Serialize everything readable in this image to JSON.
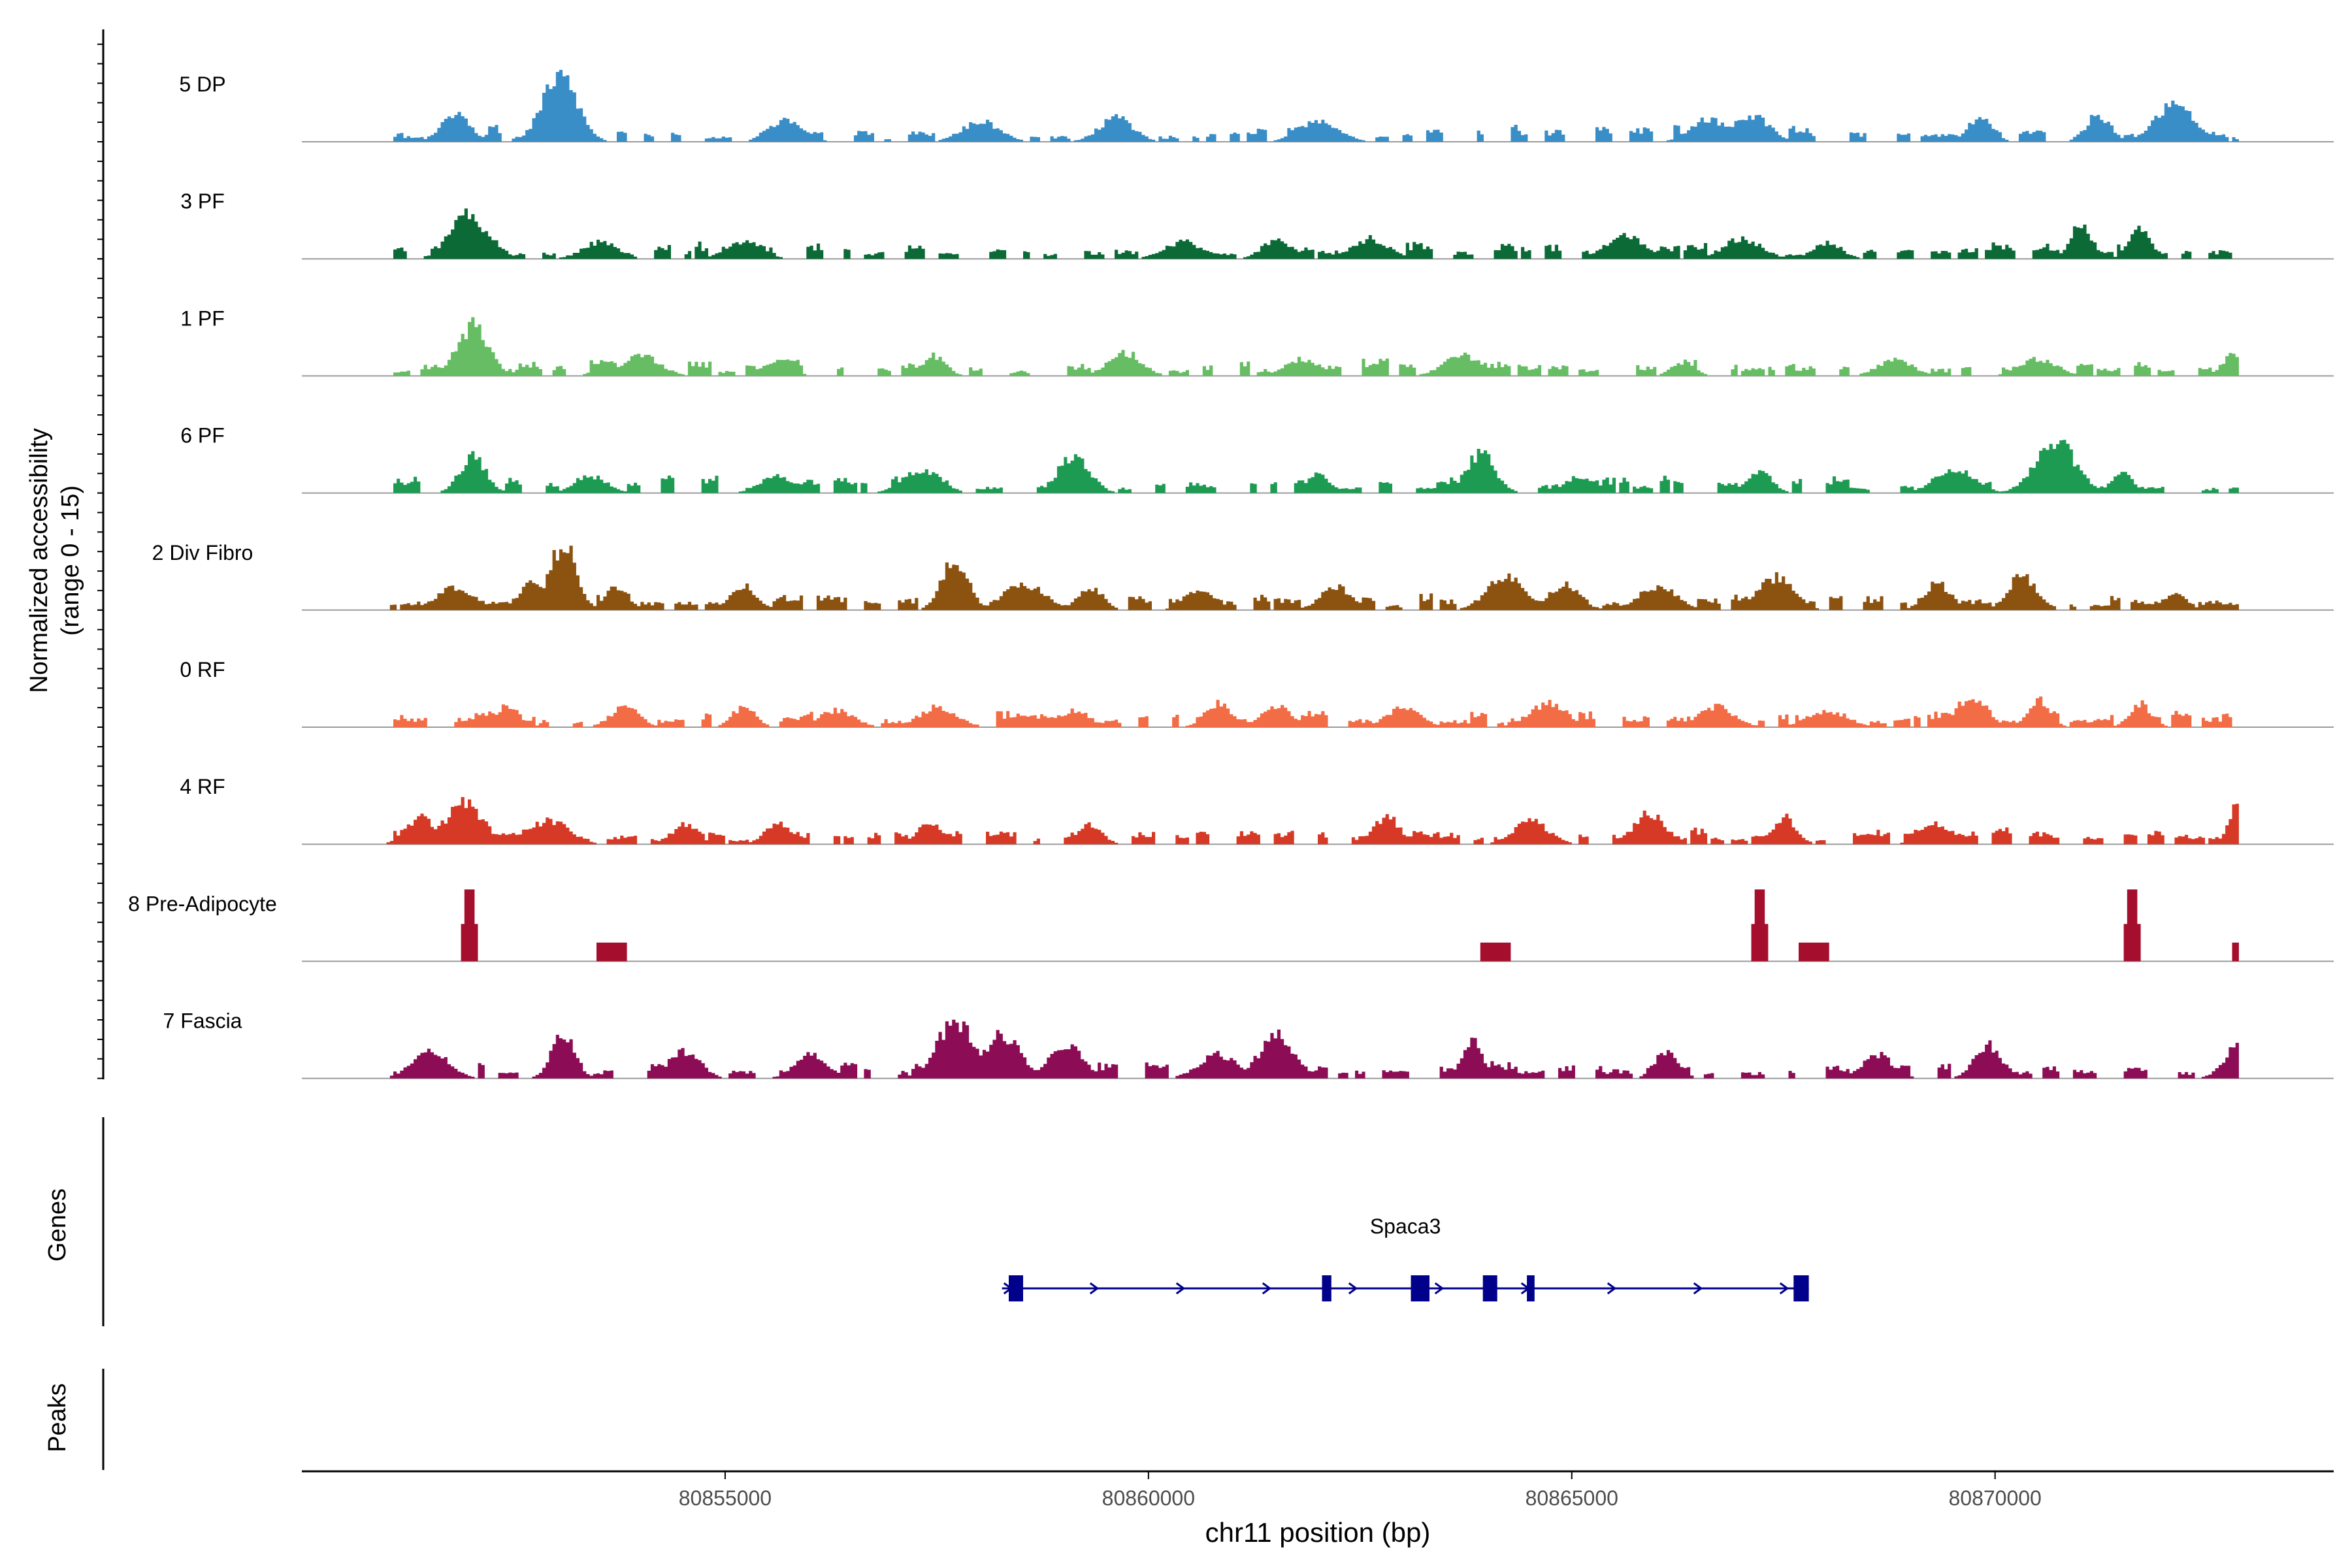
{
  "chart_data": {
    "type": "area",
    "title": "",
    "ylabel_line1": "Normalized accessibility",
    "ylabel_line2": "(range 0 - 15)",
    "xlabel": "chr11 position (bp)",
    "xlim": [
      80850000,
      80874000
    ],
    "xticks": [
      "80855000",
      "80860000",
      "80865000",
      "80870000"
    ],
    "xtick_values": [
      80855000,
      80860000,
      80865000,
      80870000
    ],
    "ylim": [
      0,
      15
    ],
    "series": [
      {
        "name": "5 DP",
        "color": "#3a8ec7",
        "density": 0.55,
        "seed": 11,
        "peaks": [
          [
            80851800,
            0.45
          ],
          [
            80853030,
            1.0
          ],
          [
            80855700,
            0.35
          ],
          [
            80858000,
            0.3
          ],
          [
            80859600,
            0.35
          ],
          [
            80862000,
            0.3
          ],
          [
            80866600,
            0.35
          ],
          [
            80867100,
            0.4
          ],
          [
            80869800,
            0.35
          ],
          [
            80871200,
            0.4
          ],
          [
            80872100,
            0.55
          ]
        ]
      },
      {
        "name": "3 PF",
        "color": "#0c6a37",
        "density": 0.55,
        "seed": 23,
        "peaks": [
          [
            80851950,
            0.65
          ],
          [
            80852200,
            0.3
          ],
          [
            80853500,
            0.25
          ],
          [
            80855200,
            0.25
          ],
          [
            80860400,
            0.25
          ],
          [
            80861500,
            0.3
          ],
          [
            80862600,
            0.3
          ],
          [
            80865600,
            0.35
          ],
          [
            80867000,
            0.3
          ],
          [
            80868000,
            0.25
          ],
          [
            80871000,
            0.55
          ],
          [
            80871700,
            0.45
          ]
        ]
      },
      {
        "name": "1 PF",
        "color": "#66bd63",
        "density": 0.45,
        "seed": 37,
        "peaks": [
          [
            80852000,
            0.75
          ],
          [
            80853600,
            0.25
          ],
          [
            80854000,
            0.3
          ],
          [
            80855600,
            0.25
          ],
          [
            80857450,
            0.3
          ],
          [
            80859700,
            0.35
          ],
          [
            80861800,
            0.25
          ],
          [
            80863700,
            0.3
          ],
          [
            80866300,
            0.2
          ],
          [
            80868800,
            0.25
          ],
          [
            80870500,
            0.25
          ],
          [
            80872800,
            0.35
          ]
        ]
      },
      {
        "name": "6 PF",
        "color": "#1e9b53",
        "density": 0.45,
        "seed": 41,
        "peaks": [
          [
            80852000,
            0.55
          ],
          [
            80853400,
            0.25
          ],
          [
            80855600,
            0.25
          ],
          [
            80857300,
            0.35
          ],
          [
            80859100,
            0.55
          ],
          [
            80862000,
            0.3
          ],
          [
            80863900,
            0.6
          ],
          [
            80865100,
            0.25
          ],
          [
            80867200,
            0.3
          ],
          [
            80869500,
            0.35
          ],
          [
            80870700,
            0.75
          ],
          [
            80871500,
            0.3
          ]
        ]
      },
      {
        "name": "2 Div Fibro",
        "color": "#8b5210",
        "density": 0.8,
        "seed": 53,
        "peaks": [
          [
            80851800,
            0.35
          ],
          [
            80852700,
            0.45
          ],
          [
            80853070,
            1.0
          ],
          [
            80853700,
            0.35
          ],
          [
            80855200,
            0.35
          ],
          [
            80857700,
            0.75
          ],
          [
            80858500,
            0.4
          ],
          [
            80859300,
            0.35
          ],
          [
            80860600,
            0.3
          ],
          [
            80862200,
            0.35
          ],
          [
            80864200,
            0.5
          ],
          [
            80864900,
            0.4
          ],
          [
            80866000,
            0.35
          ],
          [
            80867400,
            0.5
          ],
          [
            80869300,
            0.4
          ],
          [
            80870300,
            0.5
          ],
          [
            80872100,
            0.25
          ]
        ]
      },
      {
        "name": "0 RF",
        "color": "#f26c45",
        "density": 0.65,
        "seed": 67,
        "peaks": [
          [
            80852400,
            0.3
          ],
          [
            80853800,
            0.3
          ],
          [
            80855200,
            0.3
          ],
          [
            80856300,
            0.25
          ],
          [
            80857500,
            0.3
          ],
          [
            80859100,
            0.25
          ],
          [
            80860800,
            0.35
          ],
          [
            80861500,
            0.3
          ],
          [
            80863000,
            0.3
          ],
          [
            80864700,
            0.35
          ],
          [
            80866700,
            0.3
          ],
          [
            80868000,
            0.25
          ],
          [
            80869700,
            0.45
          ],
          [
            80870500,
            0.4
          ],
          [
            80871700,
            0.35
          ]
        ]
      },
      {
        "name": "4 RF",
        "color": "#d63a26",
        "density": 0.7,
        "seed": 79,
        "peaks": [
          [
            80851400,
            0.4
          ],
          [
            80851900,
            0.6
          ],
          [
            80852900,
            0.35
          ],
          [
            80854500,
            0.3
          ],
          [
            80855600,
            0.3
          ],
          [
            80857400,
            0.35
          ],
          [
            80859300,
            0.3
          ],
          [
            80862800,
            0.4
          ],
          [
            80864500,
            0.35
          ],
          [
            80865900,
            0.45
          ],
          [
            80867500,
            0.4
          ],
          [
            80869300,
            0.3
          ],
          [
            80872900,
            0.7
          ]
        ]
      },
      {
        "name": "8 Pre-Adipocyte",
        "color": "#a50f2d",
        "density": 0.0,
        "seed": 97,
        "spikes": true,
        "peaks": [
          [
            80851960,
            1.0
          ],
          [
            80853550,
            0.5
          ],
          [
            80853720,
            0.5
          ],
          [
            80864000,
            0.5
          ],
          [
            80864180,
            0.5
          ],
          [
            80867200,
            1.0
          ],
          [
            80867750,
            0.5
          ],
          [
            80867930,
            0.5
          ],
          [
            80871600,
            1.0
          ],
          [
            80872880,
            0.5
          ]
        ]
      },
      {
        "name": "7 Fascia",
        "color": "#8c0d55",
        "density": 0.55,
        "seed": 103,
        "peaks": [
          [
            80851500,
            0.4
          ],
          [
            80853070,
            0.7
          ],
          [
            80854500,
            0.4
          ],
          [
            80856000,
            0.35
          ],
          [
            80857700,
            0.85
          ],
          [
            80858250,
            0.65
          ],
          [
            80859000,
            0.5
          ],
          [
            80860800,
            0.35
          ],
          [
            80861500,
            0.65
          ],
          [
            80863800,
            0.55
          ],
          [
            80866100,
            0.4
          ],
          [
            80868600,
            0.35
          ],
          [
            80869900,
            0.5
          ],
          [
            80872900,
            0.55
          ]
        ]
      }
    ],
    "genes": [
      {
        "name": "Spaca3",
        "start": 80858270,
        "end": 80867800,
        "exons": [
          [
            80858350,
            80858520
          ],
          [
            80862050,
            80862160
          ],
          [
            80863100,
            80863320
          ],
          [
            80863950,
            80864120
          ],
          [
            80864470,
            80864560
          ],
          [
            80867620,
            80867800
          ]
        ]
      }
    ],
    "track_labels": {
      "genes": "Genes",
      "peaks": "Peaks"
    }
  }
}
